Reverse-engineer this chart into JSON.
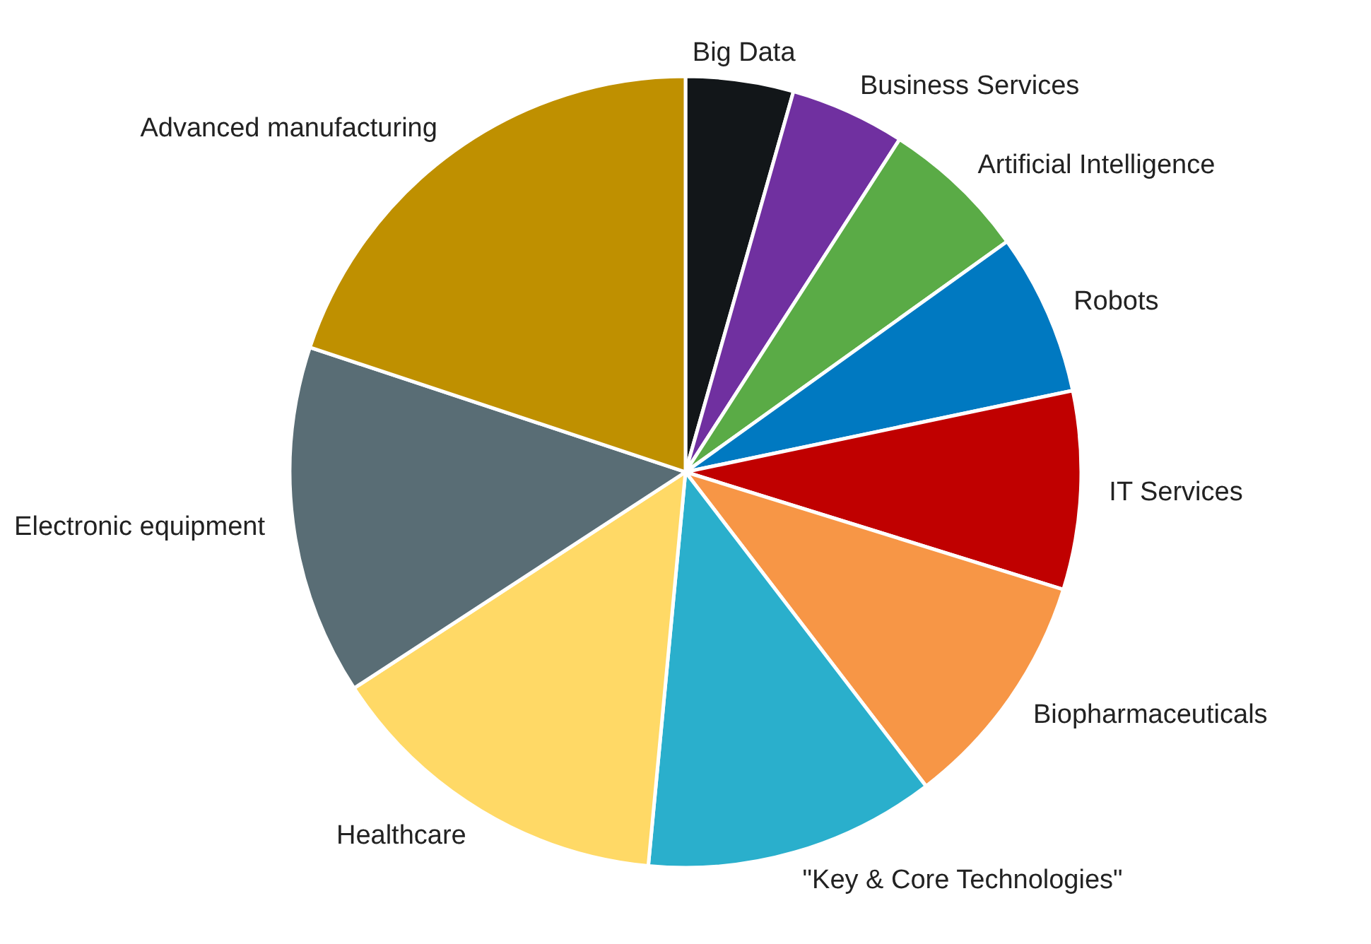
{
  "chart_data": {
    "type": "pie",
    "categories": [
      "Big Data",
      "Business Services",
      "Artificial Intelligence",
      "Robots",
      "IT Services",
      "Biopharmaceuticals",
      "\"Key & Core Technologies\"",
      "Healthcare",
      "Electronic equipment",
      "Advanced manufacturing"
    ],
    "values": [
      4.4,
      4.7,
      6.0,
      6.6,
      8.1,
      9.8,
      11.9,
      14.3,
      14.3,
      19.9
    ],
    "colors": [
      "#121619",
      "#7030a0",
      "#5aab46",
      "#0079c1",
      "#c00000",
      "#f79646",
      "#2aafcc",
      "#ffd966",
      "#596d75",
      "#bf9000"
    ]
  }
}
